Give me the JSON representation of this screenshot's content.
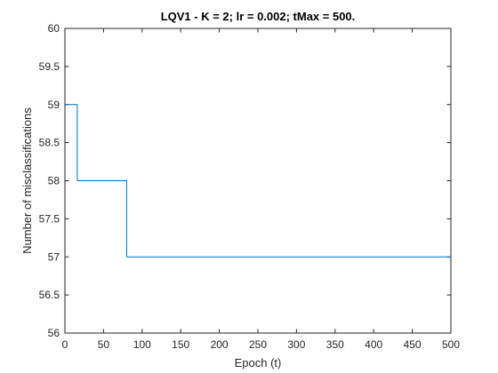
{
  "chart_data": {
    "type": "line",
    "title": "LQV1 - K = 2; lr = 0.002; tMax = 500.",
    "xlabel": "Epoch (t)",
    "ylabel": "Number of misclassifications",
    "xlim": [
      0,
      500
    ],
    "ylim": [
      56,
      60
    ],
    "xticks": [
      "0",
      "50",
      "100",
      "150",
      "200",
      "250",
      "300",
      "350",
      "400",
      "450",
      "500"
    ],
    "yticks": [
      "56",
      "56.5",
      "57",
      "57.5",
      "58",
      "58.5",
      "59",
      "59.5",
      "60"
    ],
    "grid": false,
    "series": [
      {
        "color": "#0072bd",
        "x": [
          0,
          16,
          16,
          80,
          80,
          500
        ],
        "y": [
          59,
          59,
          58,
          58,
          57,
          57
        ]
      }
    ]
  }
}
